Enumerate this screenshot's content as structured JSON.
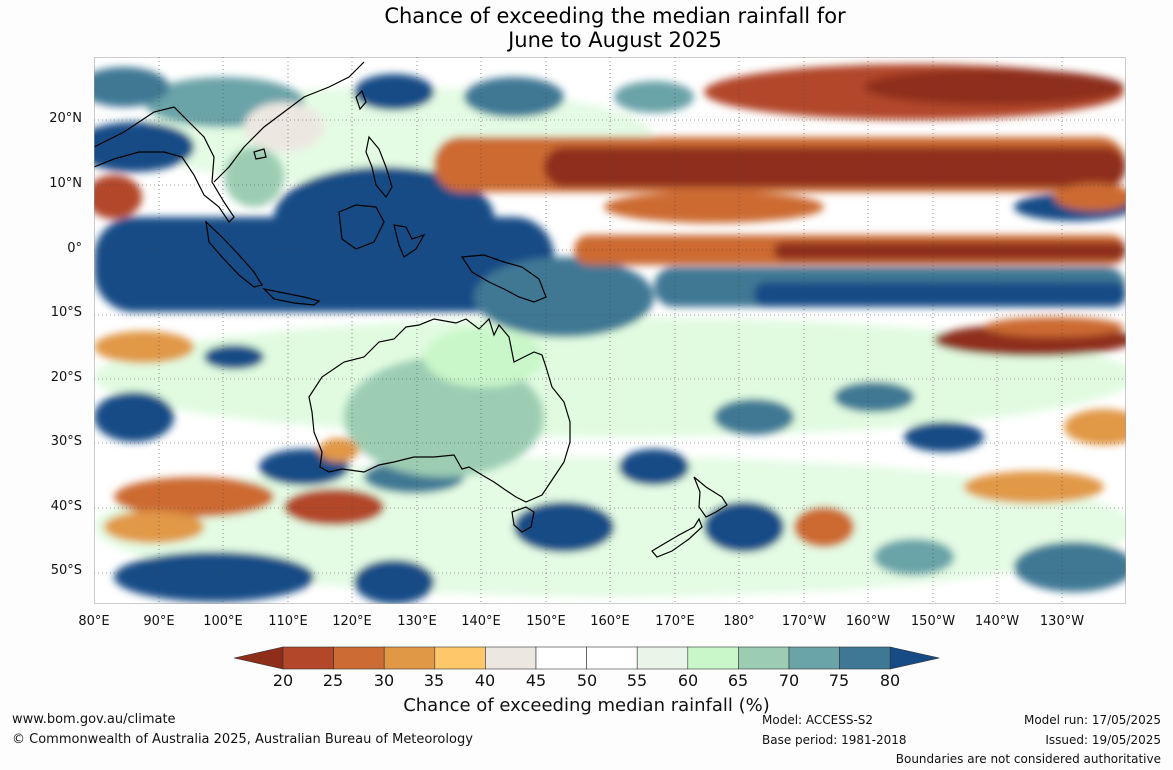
{
  "title": {
    "line1": "Chance of exceeding the median rainfall for",
    "line2": "June to August 2025"
  },
  "map": {
    "latitude_labels": [
      "20°N",
      "10°N",
      "0°",
      "10°S",
      "20°S",
      "30°S",
      "40°S",
      "50°S"
    ],
    "longitude_labels": [
      "80°E",
      "90°E",
      "100°E",
      "110°E",
      "120°E",
      "130°E",
      "140°E",
      "150°E",
      "160°E",
      "170°E",
      "180°",
      "170°W",
      "160°W",
      "150°W",
      "140°W",
      "130°W"
    ]
  },
  "legend": {
    "ticks": [
      "20",
      "25",
      "30",
      "35",
      "40",
      "45",
      "50",
      "55",
      "60",
      "65",
      "70",
      "75",
      "80"
    ],
    "colors": [
      "#8e2e1a",
      "#b2472a",
      "#cc6b33",
      "#e19846",
      "#fdc76a",
      "#ece8e1",
      "#ffffff",
      "#ffffff",
      "#e8f5e8",
      "#c9f7c9",
      "#9ccdb3",
      "#6aa3a8",
      "#3f7894",
      "#164b86"
    ],
    "label": "Chance of exceeding median rainfall (%)"
  },
  "footer": {
    "website": "www.bom.gov.au/climate",
    "copyright": "© Commonwealth of Australia 2025, Australian Bureau of Meteorology",
    "model": "Model: ACCESS-S2",
    "base_period": "Base period: 1981-2018",
    "model_run": "Model run: 17/05/2025",
    "issued": "Issued: 19/05/2025",
    "disclaimer": "Boundaries are not considered authoritative"
  }
}
